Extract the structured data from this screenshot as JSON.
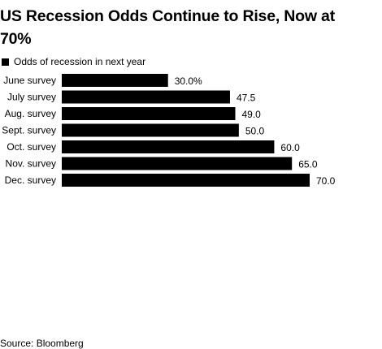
{
  "chart_data": {
    "type": "bar",
    "orientation": "horizontal",
    "title": "US Recession Odds Continue to Rise, Now at 70%",
    "categories": [
      "June survey",
      "July survey",
      "Aug. survey",
      "Sept. survey",
      "Oct. survey",
      "Nov. survey",
      "Dec. survey"
    ],
    "series": [
      {
        "name": "Odds of recession in next year",
        "values": [
          30.0,
          47.5,
          49.0,
          50.0,
          60.0,
          65.0,
          70.0
        ],
        "labels": [
          "30.0%",
          "47.5",
          "49.0",
          "50.0",
          "60.0",
          "65.0",
          "70.0"
        ]
      }
    ],
    "xlim": [
      0,
      70
    ],
    "grid": false,
    "legend_placement": "top-left",
    "bar_color": "#000000"
  },
  "source": "Source: Bloomberg"
}
